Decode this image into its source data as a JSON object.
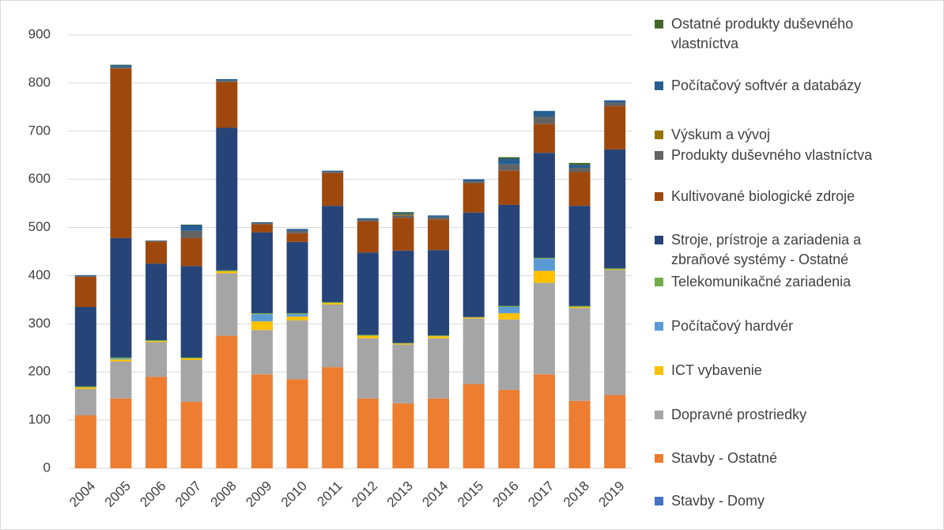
{
  "chart_data": {
    "type": "stacked_bar",
    "categories": [
      "2004",
      "2005",
      "2006",
      "2007",
      "2008",
      "2009",
      "2010",
      "2011",
      "2012",
      "2013",
      "2014",
      "2015",
      "2016",
      "2017",
      "2018",
      "2019"
    ],
    "ylim": [
      0,
      900
    ],
    "yticks": [
      0,
      100,
      200,
      300,
      400,
      500,
      600,
      700,
      800,
      900
    ],
    "grid": true,
    "legend": "right",
    "series": [
      {
        "name": "Stavby - Domy",
        "color": "#4472c4",
        "values": [
          0,
          0,
          0,
          0,
          0,
          0,
          0,
          0,
          0,
          0,
          0,
          0,
          0,
          0,
          0,
          0
        ]
      },
      {
        "name": "Stavby - Ostatné",
        "color": "#ed7d31",
        "values": [
          110,
          145,
          190,
          138,
          275,
          195,
          185,
          210,
          145,
          135,
          145,
          175,
          163,
          195,
          140,
          152
        ]
      },
      {
        "name": "Dopravné prostriedky",
        "color": "#a5a5a5",
        "values": [
          55,
          77,
          72,
          87,
          130,
          92,
          122,
          130,
          125,
          122,
          125,
          136,
          146,
          190,
          193,
          260
        ]
      },
      {
        "name": "ICT vybavenie",
        "color": "#ffc000",
        "values": [
          3,
          4,
          2,
          3,
          4,
          18,
          8,
          3,
          5,
          2,
          4,
          2,
          13,
          25,
          2,
          1
        ]
      },
      {
        "name": "Počítačový hardvér",
        "color": "#5b9bd5",
        "values": [
          0,
          2,
          0,
          0,
          0,
          15,
          5,
          0,
          0,
          0,
          0,
          0,
          13,
          25,
          0,
          0
        ]
      },
      {
        "name": "Telekomunikačné zariadenia",
        "color": "#70ad47",
        "values": [
          2,
          2,
          2,
          2,
          2,
          2,
          2,
          2,
          2,
          1,
          2,
          1,
          2,
          2,
          2,
          2
        ]
      },
      {
        "name": "Stroje, prístroje a zariadenia a zbraňové systémy - Ostatné",
        "color": "#264478",
        "values": [
          165,
          248,
          159,
          190,
          296,
          168,
          148,
          200,
          171,
          192,
          177,
          217,
          210,
          218,
          208,
          247
        ]
      },
      {
        "name": "Kultivované biologické zdroje",
        "color": "#9e480e",
        "values": [
          63,
          352,
          46,
          58,
          95,
          17,
          18,
          68,
          65,
          68,
          64,
          61,
          71,
          60,
          70,
          90
        ]
      },
      {
        "name": "Produkty duševného vlastníctva",
        "color": "#636363",
        "values": [
          1,
          3,
          1,
          15,
          3,
          2,
          5,
          3,
          3,
          5,
          4,
          4,
          13,
          15,
          9,
          7
        ]
      },
      {
        "name": "Výskum a vývoj",
        "color": "#997300",
        "values": [
          0,
          0,
          0,
          0,
          0,
          0,
          0,
          0,
          0,
          2,
          0,
          0,
          0,
          0,
          0,
          0
        ]
      },
      {
        "name": "Počítačový softvér a databázy",
        "color": "#255e91",
        "values": [
          2,
          4,
          1,
          12,
          3,
          2,
          4,
          2,
          3,
          3,
          4,
          4,
          12,
          12,
          6,
          5
        ]
      },
      {
        "name": "Ostatné produkty duševného vlastníctva",
        "color": "#43682b",
        "values": [
          0,
          1,
          0,
          1,
          0,
          0,
          0,
          0,
          0,
          2,
          0,
          0,
          3,
          0,
          4,
          0
        ]
      }
    ]
  }
}
